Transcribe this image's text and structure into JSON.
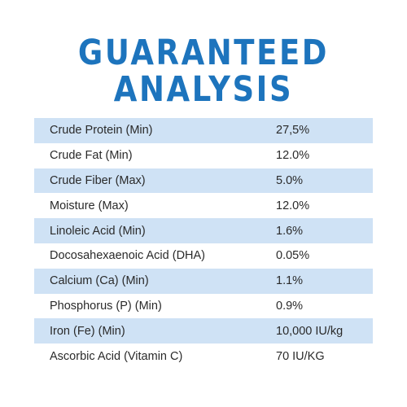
{
  "header": {
    "title_line1": "GUARANTEED",
    "title_line2": "ANALYSIS"
  },
  "colors": {
    "title": "#1d74bd",
    "row_shade": "#cfe2f5",
    "text": "#2a2a2a"
  },
  "analysis": {
    "rows": [
      {
        "name": "Crude Protein (Min)",
        "value": "27,5%"
      },
      {
        "name": "Crude Fat (Min)",
        "value": "12.0%"
      },
      {
        "name": "Crude Fiber (Max)",
        "value": "5.0%"
      },
      {
        "name": "Moisture (Max)",
        "value": "12.0%"
      },
      {
        "name": "Linoleic Acid (Min)",
        "value": "1.6%"
      },
      {
        "name": "Docosahexaenoic Acid (DHA)",
        "value": "0.05%"
      },
      {
        "name": "Calcium (Ca) (Min)",
        "value": "1.1%"
      },
      {
        "name": "Phosphorus (P) (Min)",
        "value": "0.9%"
      },
      {
        "name": "Iron (Fe) (Min)",
        "value": "10,000 IU/kg"
      },
      {
        "name": "Ascorbic Acid (Vitamin C)",
        "value": "70 IU/KG"
      }
    ]
  }
}
